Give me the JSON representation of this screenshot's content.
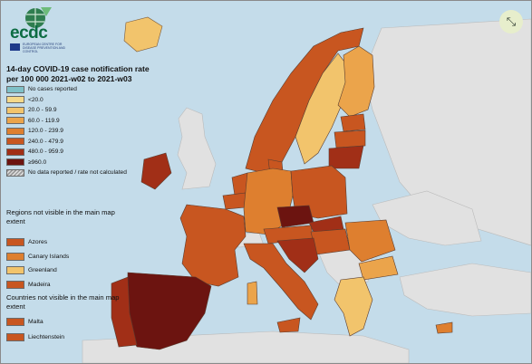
{
  "logo": {
    "name": "ecdc",
    "subtitle": "EUROPEAN CENTRE FOR DISEASE PREVENTION AND CONTROL"
  },
  "title": "14-day COVID-19 case notification rate per 100 000 2021-w02 to 2021-w03",
  "legend": {
    "items": [
      {
        "label": "No cases reported",
        "color": "#7fc1c8"
      },
      {
        "label": "<20.0",
        "color": "#f5d98a"
      },
      {
        "label": "20.0 - 59.9",
        "color": "#f2c46c"
      },
      {
        "label": "60.0 - 119.9",
        "color": "#eba44b"
      },
      {
        "label": "120.0 - 239.9",
        "color": "#de7f2f"
      },
      {
        "label": "240.0 - 479.9",
        "color": "#c85620"
      },
      {
        "label": "480.0 - 959.9",
        "color": "#a12f17"
      },
      {
        "label": "≥960.0",
        "color": "#6c1410"
      },
      {
        "label": "No data reported / rate not calculated",
        "color": "hatch"
      }
    ]
  },
  "regions_title": "Regions not visible in the main map extent",
  "regions": [
    {
      "label": "Azores",
      "color": "#c85620"
    },
    {
      "label": "Canary Islands",
      "color": "#de7f2f"
    },
    {
      "label": "Greenland",
      "color": "#f2c46c"
    },
    {
      "label": "Madeira",
      "color": "#c85620"
    }
  ],
  "countries_title": "Countries not visible in the main map extent",
  "countries": [
    {
      "label": "Malta",
      "color": "#c85620"
    },
    {
      "label": "Liechtenstein",
      "color": "#c85620"
    }
  ],
  "controls": {
    "fullscreen_icon": "expand-arrows-icon",
    "glyph": "⤡"
  },
  "colors": {
    "sea": "#c4dcea",
    "non_eu": "#e1e1e1",
    "border": "#5a3d30"
  }
}
